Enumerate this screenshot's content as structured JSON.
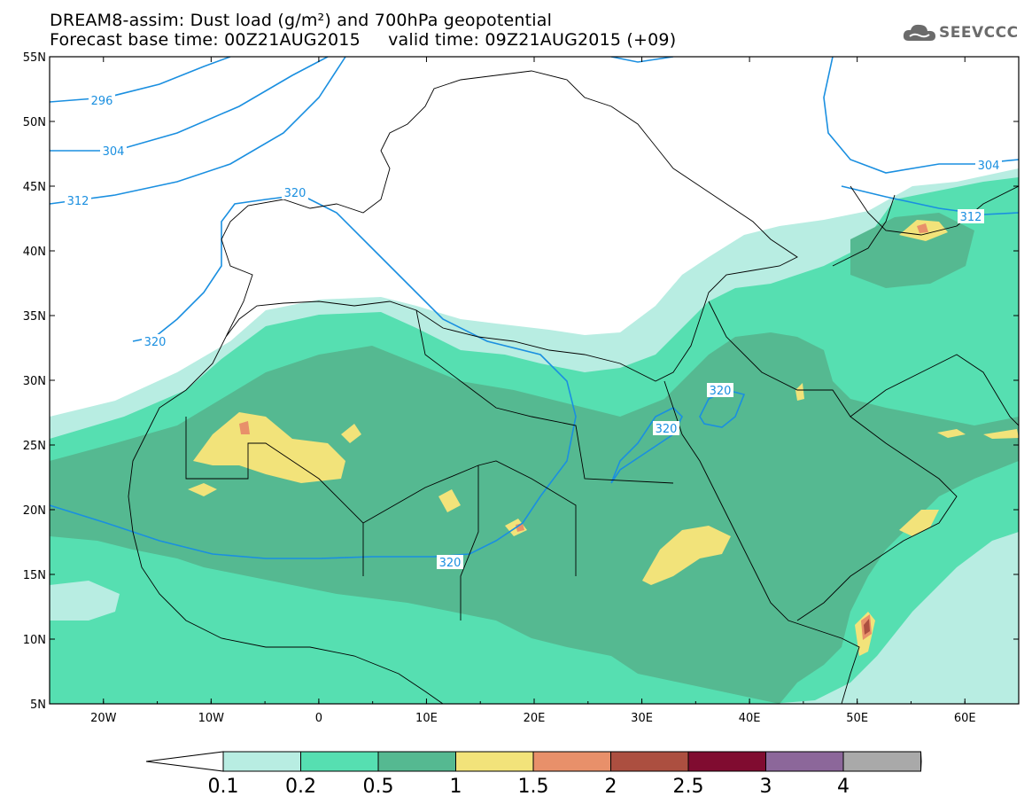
{
  "title": {
    "line1": "DREAM8-assim: Dust load (g/m²) and 700hPa geopotential",
    "line2": "Forecast base time: 00Z21AUG2015     valid time: 09Z21AUG2015 (+09)"
  },
  "logo": {
    "icon": "cloud-logo-icon",
    "text": "SEEVCCC"
  },
  "map": {
    "lon_range": [
      -25,
      65
    ],
    "lat_range": [
      5,
      55
    ],
    "lat_ticks": [
      "55N",
      "50N",
      "45N",
      "40N",
      "35N",
      "30N",
      "25N",
      "20N",
      "15N",
      "10N",
      "5N"
    ],
    "lon_ticks": [
      "20W",
      "10W",
      "0",
      "10E",
      "20E",
      "30E",
      "40E",
      "50E",
      "60E"
    ],
    "contour_labels": [
      "296",
      "304",
      "312",
      "320",
      "320",
      "320",
      "320",
      "320",
      "304",
      "312"
    ],
    "colors": {
      "c0_1": "#b8ede2",
      "c0_2": "#56dfb1",
      "c0_5": "#55b991",
      "c1": "#f2e37a",
      "c1_5": "#e8906a",
      "c2": "#ac4f40",
      "contour": "#1a8fe0",
      "coast": "#000000"
    }
  },
  "colorbar": {
    "labels": [
      "0.1",
      "0.2",
      "0.5",
      "1",
      "1.5",
      "2",
      "2.5",
      "3",
      "4"
    ],
    "colors": [
      "#b8ede2",
      "#56dfb1",
      "#55b991",
      "#f2e37a",
      "#e8906a",
      "#ac4f40",
      "#800c30",
      "#8c679a",
      "#a9a9a9"
    ],
    "low_color": "#ffffff",
    "high_color": "#a9a9a9"
  }
}
